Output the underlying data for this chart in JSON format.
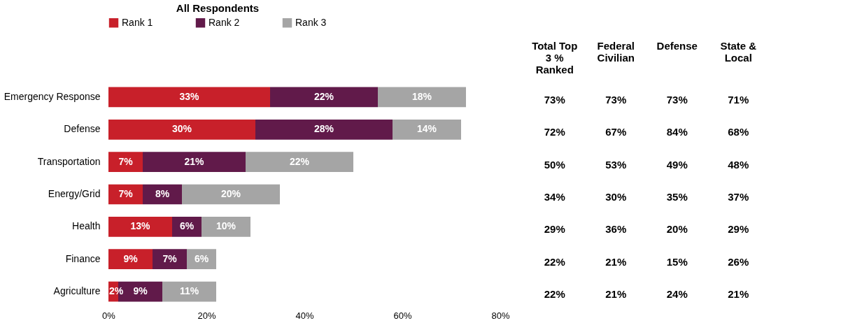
{
  "chart_data": [
    {
      "type": "bar",
      "orientation": "horizontal",
      "stacked": true,
      "legend_title": "All Respondents",
      "legend": "top",
      "grid": false,
      "categories": [
        "Emergency Response",
        "Defense",
        "Transportation",
        "Energy/Grid",
        "Health",
        "Finance",
        "Agriculture"
      ],
      "series": [
        {
          "name": "Rank 1",
          "color": "#c8202a",
          "values": [
            33,
            30,
            7,
            7,
            13,
            9,
            2
          ],
          "value_labels": [
            "33%",
            "30%",
            "7%",
            "7%",
            "13%",
            "9%",
            "2%"
          ]
        },
        {
          "name": "Rank 2",
          "color": "#611a4a",
          "values": [
            22,
            28,
            21,
            8,
            6,
            7,
            9
          ],
          "value_labels": [
            "22%",
            "28%",
            "21%",
            "8%",
            "6%",
            "7%",
            "9%"
          ]
        },
        {
          "name": "Rank 3",
          "color": "#a5a5a5",
          "values": [
            18,
            14,
            22,
            20,
            10,
            6,
            11
          ],
          "value_labels": [
            "18%",
            "14%",
            "22%",
            "20%",
            "10%",
            "6%",
            "11%"
          ]
        }
      ],
      "xlim": [
        0,
        80
      ],
      "xticks": [
        {
          "value": 0,
          "label": "0%"
        },
        {
          "value": 20,
          "label": "20%"
        },
        {
          "value": 40,
          "label": "40%"
        },
        {
          "value": 60,
          "label": "60%"
        },
        {
          "value": 80,
          "label": "80%"
        }
      ]
    },
    {
      "type": "other",
      "categories": [
        "Total Top 3 % Ranked",
        "Federal Civilian",
        "Defense",
        "State & Local"
      ],
      "cell_labels": [
        [
          "73%",
          "73%",
          "73%",
          "71%"
        ],
        [
          "72%",
          "67%",
          "84%",
          "68%"
        ],
        [
          "50%",
          "53%",
          "49%",
          "48%"
        ],
        [
          "34%",
          "30%",
          "35%",
          "37%"
        ],
        [
          "29%",
          "36%",
          "20%",
          "29%"
        ],
        [
          "22%",
          "21%",
          "15%",
          "26%"
        ],
        [
          "22%",
          "21%",
          "24%",
          "21%"
        ]
      ]
    }
  ]
}
